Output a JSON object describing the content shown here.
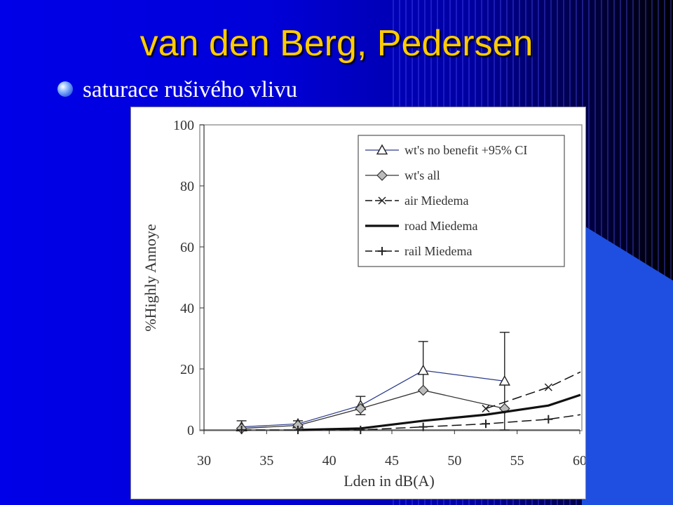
{
  "slide": {
    "title": "van den Berg, Pedersen",
    "bullet": "saturace rušivého vlivu"
  },
  "colors": {
    "title": "#ffcc00",
    "bullet_text": "#ffffff",
    "wt_no_benefit": "#2a3a8a",
    "wt_all": "#333333",
    "miedema": "#111111"
  },
  "chart_data": {
    "type": "line",
    "xlabel": "Lden in dB(A)",
    "ylabel": "%Highly Annoye",
    "xlim": [
      30,
      60
    ],
    "ylim": [
      0,
      100
    ],
    "xticks": [
      "30",
      "35",
      "40",
      "45",
      "50",
      "55",
      "60"
    ],
    "yticks": [
      "0",
      "20",
      "40",
      "60",
      "80",
      "100"
    ],
    "grid": false,
    "legend_position": "top-right",
    "series": [
      {
        "name": "wt's no benefit +95% CI",
        "marker": "triangle",
        "x": [
          33,
          37.5,
          42.5,
          47.5,
          54
        ],
        "y": [
          1,
          2,
          8,
          19.5,
          16
        ],
        "ci_low": [
          0,
          1,
          5,
          13,
          0
        ],
        "ci_high": [
          3,
          3,
          11,
          29,
          32
        ]
      },
      {
        "name": "wt's all",
        "marker": "diamond",
        "x": [
          33,
          37.5,
          42.5,
          47.5,
          54
        ],
        "y": [
          0.5,
          1.5,
          7,
          13,
          7
        ]
      },
      {
        "name": "air Miedema",
        "marker": "x",
        "dash": "dashed",
        "x": [
          52.5,
          57.5,
          60.5
        ],
        "y": [
          7,
          14,
          19
        ]
      },
      {
        "name": "road Miedema",
        "marker": "none",
        "dash": "solid-thick",
        "x": [
          37.5,
          42.5,
          47.5,
          52.5,
          57.5,
          60.5
        ],
        "y": [
          0,
          0.5,
          3,
          5,
          8,
          11.5
        ]
      },
      {
        "name": "rail Miedema",
        "marker": "plus",
        "dash": "dashed",
        "x": [
          33,
          37.5,
          42.5,
          47.5,
          52.5,
          57.5,
          60.5
        ],
        "y": [
          0,
          0,
          0,
          1,
          2,
          3.5,
          5
        ]
      }
    ]
  }
}
